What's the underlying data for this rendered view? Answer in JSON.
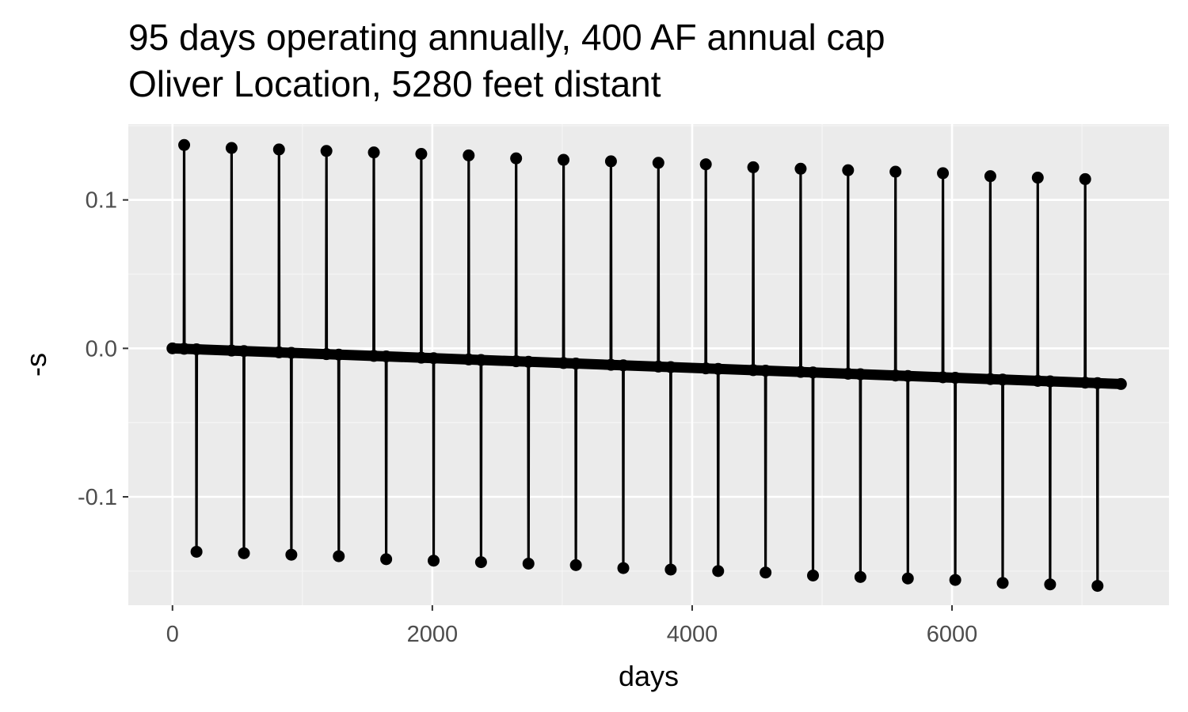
{
  "chart_data": {
    "type": "line",
    "title": [
      "95 days operating annually, 400 AF annual cap",
      "Oliver Location, 5280 feet distant"
    ],
    "xlabel": "days",
    "ylabel": "-s",
    "xlim": [
      -340,
      7670
    ],
    "ylim": [
      -0.173,
      0.151
    ],
    "x_ticks": [
      0,
      2000,
      4000,
      6000
    ],
    "x_tick_labels": [
      "0",
      "2000",
      "4000",
      "6000"
    ],
    "y_ticks": [
      -0.1,
      0.0,
      0.1
    ],
    "y_tick_labels": [
      "-0.1",
      "0.0",
      "0.1"
    ],
    "grid": true,
    "legend": "none",
    "series": [
      {
        "points_style": "points joined by lines",
        "color": "#000000",
        "cycle_length_days": 365,
        "operating_days_per_year": 95,
        "years": 20,
        "end_day": 7300,
        "peak_x": [
          90,
          455,
          820,
          1185,
          1550,
          1915,
          2280,
          2645,
          3010,
          3375,
          3740,
          4105,
          4470,
          4835,
          5200,
          5565,
          5930,
          6295,
          6660,
          7025
        ],
        "peak_y": [
          0.137,
          0.135,
          0.134,
          0.133,
          0.132,
          0.131,
          0.13,
          0.128,
          0.127,
          0.126,
          0.125,
          0.124,
          0.122,
          0.121,
          0.12,
          0.119,
          0.118,
          0.116,
          0.115,
          0.114
        ],
        "trough_x": [
          185,
          550,
          915,
          1280,
          1645,
          2010,
          2375,
          2740,
          3105,
          3470,
          3835,
          4200,
          4565,
          4930,
          5295,
          5660,
          6025,
          6390,
          6755,
          7120
        ],
        "trough_y": [
          -0.137,
          -0.138,
          -0.139,
          -0.14,
          -0.142,
          -0.143,
          -0.144,
          -0.145,
          -0.146,
          -0.148,
          -0.149,
          -0.15,
          -0.151,
          -0.153,
          -0.154,
          -0.155,
          -0.156,
          -0.158,
          -0.159,
          -0.16
        ],
        "baseline_start": [
          0,
          0.0
        ],
        "baseline_end": [
          7300,
          -0.024
        ]
      }
    ]
  },
  "colors": {
    "panel_background": "#ebebeb",
    "major_grid": "#ffffff",
    "minor_grid": "#f5f5f5",
    "data": "#000000",
    "tick_label": "#4d4d4d"
  }
}
